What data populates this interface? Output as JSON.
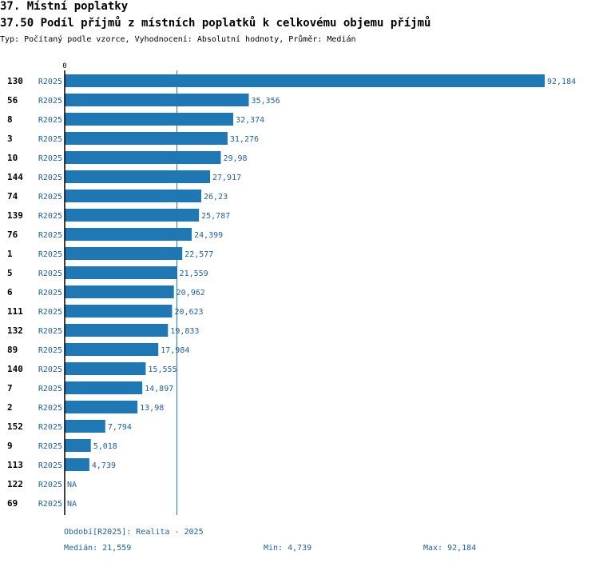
{
  "header": {
    "section_title": "37. Místní poplatky",
    "chart_title": "37.50 Podíl příjmů z místních poplatků k celkovému objemu příjmů",
    "subtitle": "Typ: Počítaný podle vzorce, Vyhodnocení: Absolutní hodnoty, Průměr: Medián"
  },
  "colors": {
    "bar": "#1f77b4",
    "text_blue": "#1f5f9f",
    "axis": "#000000",
    "median_line": "#1f77b4"
  },
  "chart_data": {
    "type": "bar",
    "orientation": "horizontal",
    "axis_zero_label": "0",
    "period_label": "R2025",
    "median_value": 21.559,
    "rows": [
      {
        "id": "130",
        "period": "R2025",
        "value": 92.184,
        "label": "92,184"
      },
      {
        "id": "56",
        "period": "R2025",
        "value": 35.356,
        "label": "35,356"
      },
      {
        "id": "8",
        "period": "R2025",
        "value": 32.374,
        "label": "32,374"
      },
      {
        "id": "3",
        "period": "R2025",
        "value": 31.276,
        "label": "31,276"
      },
      {
        "id": "10",
        "period": "R2025",
        "value": 29.98,
        "label": "29,98"
      },
      {
        "id": "144",
        "period": "R2025",
        "value": 27.917,
        "label": "27,917"
      },
      {
        "id": "74",
        "period": "R2025",
        "value": 26.23,
        "label": "26,23"
      },
      {
        "id": "139",
        "period": "R2025",
        "value": 25.787,
        "label": "25,787"
      },
      {
        "id": "76",
        "period": "R2025",
        "value": 24.399,
        "label": "24,399"
      },
      {
        "id": "1",
        "period": "R2025",
        "value": 22.577,
        "label": "22,577"
      },
      {
        "id": "5",
        "period": "R2025",
        "value": 21.559,
        "label": "21,559"
      },
      {
        "id": "6",
        "period": "R2025",
        "value": 20.962,
        "label": "20,962"
      },
      {
        "id": "111",
        "period": "R2025",
        "value": 20.623,
        "label": "20,623"
      },
      {
        "id": "132",
        "period": "R2025",
        "value": 19.833,
        "label": "19,833"
      },
      {
        "id": "89",
        "period": "R2025",
        "value": 17.984,
        "label": "17,984"
      },
      {
        "id": "140",
        "period": "R2025",
        "value": 15.555,
        "label": "15,555"
      },
      {
        "id": "7",
        "period": "R2025",
        "value": 14.897,
        "label": "14,897"
      },
      {
        "id": "2",
        "period": "R2025",
        "value": 13.98,
        "label": "13,98"
      },
      {
        "id": "152",
        "period": "R2025",
        "value": 7.794,
        "label": "7,794"
      },
      {
        "id": "9",
        "period": "R2025",
        "value": 5.018,
        "label": "5,018"
      },
      {
        "id": "113",
        "period": "R2025",
        "value": 4.739,
        "label": "4,739"
      },
      {
        "id": "122",
        "period": "R2025",
        "value": null,
        "label": "NA"
      },
      {
        "id": "69",
        "period": "R2025",
        "value": null,
        "label": "NA"
      }
    ]
  },
  "footer": {
    "period_legend": "Období[R2025]: Realita - 2025",
    "median": "Medián: 21,559",
    "min": "Min: 4,739",
    "max": "Max: 92,184"
  }
}
